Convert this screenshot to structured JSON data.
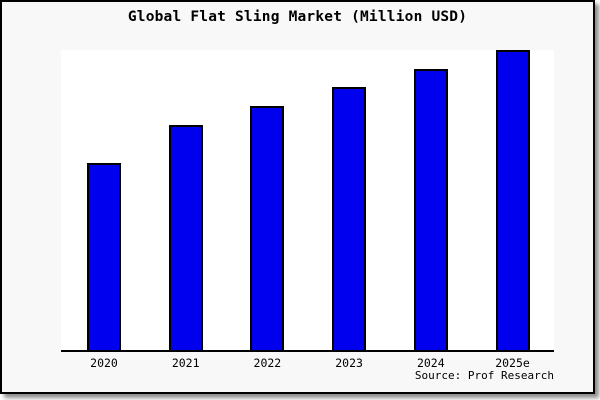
{
  "title": "Global Flat Sling Market (Million USD)",
  "source_note": "Source: Prof Research",
  "colors": {
    "bar_fill": "#0000ee",
    "bar_border": "#000000",
    "canvas_background": "#f8f8f8",
    "plot_background": "#ffffff",
    "axis": "#000000",
    "text": "#000000"
  },
  "chart_data": {
    "type": "bar",
    "title": "Global Flat Sling Market (Million USD)",
    "categories": [
      "2020",
      "2021",
      "2022",
      "2023",
      "2024",
      "2025e"
    ],
    "values": [
      62.4,
      75.0,
      81.3,
      87.7,
      93.7,
      100.0
    ],
    "value_note": "No y-axis scale shown; values estimated as relative index with 2025e = 100",
    "xlabel": "",
    "ylabel": "",
    "ylim": [
      0,
      100
    ],
    "grid": false,
    "legend": false,
    "annotations": [
      "Source: Prof Research"
    ]
  }
}
